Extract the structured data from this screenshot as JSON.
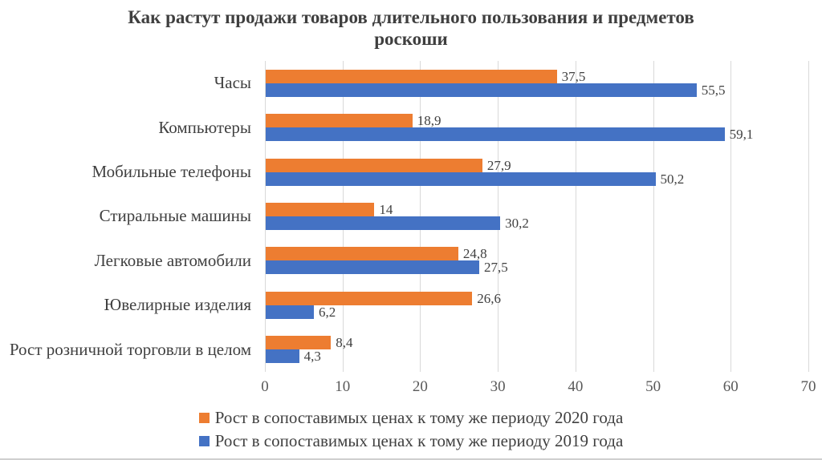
{
  "chart_data": {
    "type": "bar",
    "orientation": "horizontal",
    "title": "Как растут продажи товаров длительного пользования и предметов роскоши",
    "categories": [
      "Часы",
      "Компьютеры",
      "Мобильные телефоны",
      "Стиральные машины",
      "Легковые автомобили",
      "Ювелирные изделия",
      "Рост розничной торговли в целом"
    ],
    "series": [
      {
        "name": "Рост в сопоставимых ценах к тому же периоду 2020 года",
        "color": "#ED7D31",
        "values": [
          37.5,
          18.9,
          27.9,
          14,
          24.8,
          26.6,
          8.4
        ],
        "value_labels": [
          "37,5",
          "18,9",
          "27,9",
          "14",
          "24,8",
          "26,6",
          "8,4"
        ]
      },
      {
        "name": "Рост в сопоставимых ценах к тому же периоду 2019 года",
        "color": "#4472C4",
        "values": [
          55.5,
          59.1,
          50.2,
          30.2,
          27.5,
          6.2,
          4.3
        ],
        "value_labels": [
          "55,5",
          "59,1",
          "50,2",
          "30,2",
          "27,5",
          "6,2",
          "4,3"
        ]
      }
    ],
    "x_ticks": [
      "0",
      "10",
      "20",
      "30",
      "40",
      "50",
      "60",
      "70"
    ],
    "xlim": [
      0,
      70
    ],
    "grid": "vertical-only",
    "legend_position": "bottom",
    "colors": {
      "title_text": "#3f3f3f",
      "label_text": "#404040",
      "tick_text": "#595959",
      "gridline": "#d9d9d9",
      "background": "#ffffff"
    }
  }
}
